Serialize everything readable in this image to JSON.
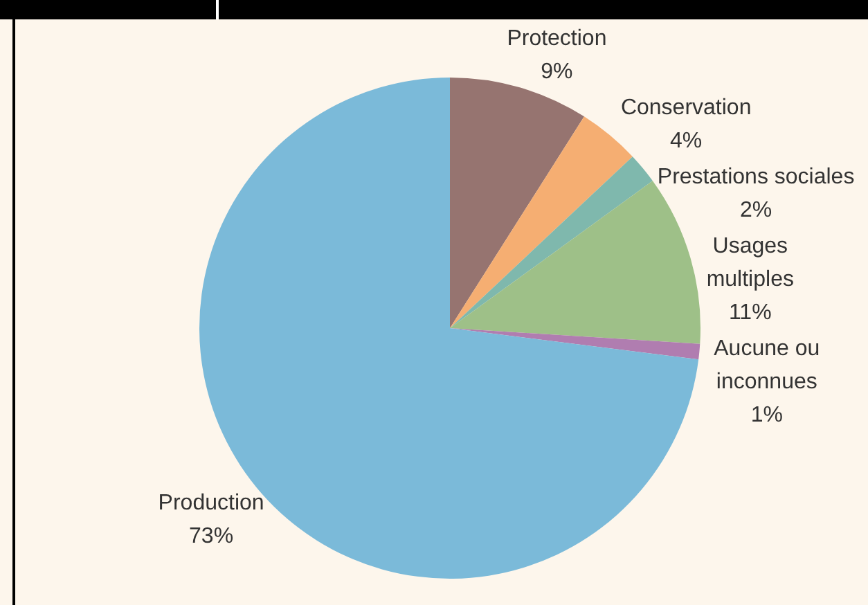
{
  "chart_data": {
    "type": "pie",
    "categories": [
      "Protection",
      "Conservation",
      "Prestations sociales",
      "Usages multiples",
      "Aucune ou inconnues",
      "Production"
    ],
    "values": [
      9,
      4,
      2,
      11,
      1,
      73
    ],
    "colors": [
      "#967470",
      "#f5ae72",
      "#7fb8ad",
      "#9ec088",
      "#b07db0",
      "#7bbad9"
    ],
    "value_labels": [
      "9%",
      "4%",
      "2%",
      "11%",
      "1%",
      "73%"
    ],
    "legend": false
  }
}
